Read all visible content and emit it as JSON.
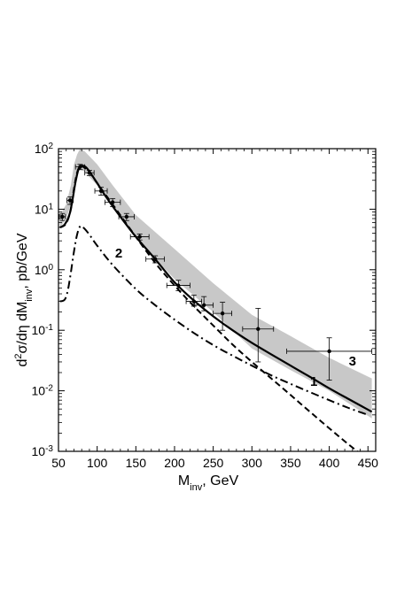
{
  "chart_data": {
    "type": "line",
    "title": "",
    "xlabel": "M",
    "xlabel_sub": "inv",
    "xlabel_suffix": ", GeV",
    "ylabel_html": "d<tspan baseline-shift=\"super\" font-size=\"11\">2</tspan>σ/dη dM<tspan baseline-shift=\"sub\" font-size=\"11\">inv</tspan>, pb/GeV",
    "xlim": [
      50,
      460
    ],
    "ylim": [
      0.001,
      100
    ],
    "y_scale": "log",
    "x_ticks": [
      50,
      100,
      150,
      200,
      250,
      300,
      350,
      400,
      450
    ],
    "y_ticks": [
      {
        "value": 0.001,
        "base": "10",
        "exp": "-3"
      },
      {
        "value": 0.01,
        "base": "10",
        "exp": "-2"
      },
      {
        "value": 0.1,
        "base": "10",
        "exp": "-1"
      },
      {
        "value": 1,
        "base": "10",
        "exp": "0"
      },
      {
        "value": 10,
        "base": "10",
        "exp": "1"
      },
      {
        "value": 100,
        "base": "10",
        "exp": "2"
      }
    ],
    "grid": false,
    "band": {
      "x": [
        52,
        60,
        66,
        70,
        74,
        78,
        84,
        90,
        100,
        120,
        150,
        200,
        250,
        300,
        350,
        400,
        455
      ],
      "upper": [
        8,
        12,
        25,
        55,
        80,
        100,
        90,
        75,
        55,
        25,
        8,
        2.2,
        0.6,
        0.18,
        0.08,
        0.035,
        0.016
      ],
      "lower": [
        5,
        7,
        12,
        28,
        40,
        45,
        42,
        34,
        25,
        11,
        3.3,
        0.7,
        0.2,
        0.05,
        0.022,
        0.01,
        0.0035
      ]
    },
    "series": [
      {
        "name": "3",
        "style": "solid",
        "x": [
          52,
          58,
          64,
          68,
          72,
          76,
          80,
          85,
          90,
          100,
          110,
          130,
          150,
          175,
          200,
          225,
          250,
          275,
          300,
          325,
          350,
          375,
          400,
          425,
          455
        ],
        "y": [
          5,
          5.6,
          8,
          14,
          28,
          46,
          52,
          50,
          42,
          27,
          17,
          7.5,
          3.5,
          1.5,
          0.62,
          0.31,
          0.17,
          0.1,
          0.062,
          0.04,
          0.026,
          0.017,
          0.011,
          0.0073,
          0.0045
        ]
      },
      {
        "name": "1",
        "style": "dashed",
        "x": [
          52,
          60,
          66,
          70,
          74,
          78,
          82,
          90,
          100,
          120,
          150,
          175,
          200,
          225,
          250,
          275,
          300,
          325,
          350,
          375,
          400,
          425,
          455
        ],
        "y": [
          5,
          5.8,
          10,
          22,
          40,
          52,
          50,
          41,
          27,
          12,
          3.5,
          1.3,
          0.55,
          0.25,
          0.12,
          0.058,
          0.03,
          0.016,
          0.0085,
          0.0045,
          0.0024,
          0.0013,
          0.00065
        ]
      },
      {
        "name": "2",
        "style": "dashdot",
        "x": [
          52,
          58,
          62,
          66,
          70,
          74,
          78,
          82,
          90,
          100,
          120,
          150,
          175,
          200,
          225,
          250,
          275,
          300,
          325,
          350,
          375,
          400,
          425,
          450
        ],
        "y": [
          0.3,
          0.32,
          0.45,
          0.9,
          2,
          3.8,
          5.2,
          5,
          3.8,
          2.5,
          1.2,
          0.48,
          0.26,
          0.15,
          0.09,
          0.057,
          0.038,
          0.026,
          0.018,
          0.013,
          0.0095,
          0.007,
          0.0052,
          0.004
        ]
      }
    ],
    "data_points": {
      "x": [
        55,
        65,
        78,
        90,
        105,
        120,
        138,
        155,
        175,
        205,
        225,
        238,
        262,
        308,
        400
      ],
      "y": [
        7.5,
        14,
        50,
        40,
        20,
        13,
        7.5,
        3.5,
        1.5,
        0.55,
        0.3,
        0.26,
        0.19,
        0.105,
        0.045
      ],
      "x_err": [
        4,
        4,
        6,
        6,
        8,
        10,
        10,
        12,
        12,
        15,
        10,
        12,
        12,
        20,
        55
      ],
      "y_err_lo": [
        1,
        2,
        5,
        4,
        3,
        2,
        1,
        0.4,
        0.2,
        0.1,
        0.05,
        0.05,
        0.09,
        0.075,
        0.03
      ],
      "y_err_hi": [
        1,
        2,
        5,
        4,
        3,
        2,
        1,
        0.4,
        0.2,
        0.12,
        0.08,
        0.1,
        0.1,
        0.125,
        0.03
      ]
    },
    "curve_labels": [
      {
        "text": "1",
        "x": 380,
        "y": 0.012
      },
      {
        "text": "2",
        "x": 128,
        "y": 1.6
      },
      {
        "text": "3",
        "x": 430,
        "y": 0.026
      }
    ],
    "colors": {
      "band": "#c8c8c8",
      "line": "#000000"
    }
  }
}
